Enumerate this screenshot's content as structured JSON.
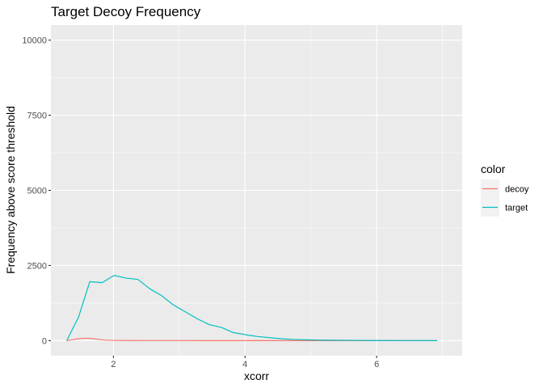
{
  "chart_data": {
    "type": "line",
    "title": "Target Decoy Frequency",
    "xlabel": "xcorr",
    "ylabel": "Frequency above score threshold",
    "xlim": [
      1.05,
      7.3
    ],
    "ylim": [
      -500,
      10500
    ],
    "x_ticks": [
      2,
      4,
      6
    ],
    "x_major_labels": [
      "2",
      "4",
      "6"
    ],
    "x_minor": [
      1,
      3,
      5,
      7
    ],
    "y_ticks": [
      0,
      2500,
      5000,
      7500,
      10000
    ],
    "y_major_labels": [
      "0",
      "2500",
      "5000",
      "7500",
      "10000"
    ],
    "y_minor": [
      1250,
      3750,
      6250,
      8750
    ],
    "grid": true,
    "legend_position": "right",
    "legend_title": "color",
    "series": [
      {
        "name": "decoy",
        "color": "#F8766D",
        "x": [
          1.29,
          1.45,
          1.55,
          1.65,
          1.75,
          1.85,
          2.0,
          2.2,
          2.5,
          3.0,
          4.0,
          5.0,
          6.0,
          6.92
        ],
        "y": [
          0,
          60,
          80,
          75,
          50,
          20,
          10,
          5,
          3,
          2,
          1,
          0,
          0,
          0
        ]
      },
      {
        "name": "target",
        "color": "#00BFC4",
        "x": [
          1.29,
          1.47,
          1.64,
          1.83,
          2.01,
          2.19,
          2.37,
          2.55,
          2.73,
          2.91,
          3.1,
          3.28,
          3.46,
          3.64,
          3.82,
          4.0,
          4.18,
          4.37,
          4.55,
          4.73,
          4.91,
          5.1,
          5.3,
          5.6,
          6.0,
          6.5,
          6.92
        ],
        "y": [
          0,
          780,
          1960,
          1930,
          2170,
          2080,
          2040,
          1730,
          1500,
          1190,
          950,
          720,
          530,
          440,
          270,
          200,
          140,
          100,
          65,
          40,
          30,
          20,
          15,
          10,
          5,
          2,
          0
        ]
      }
    ]
  }
}
